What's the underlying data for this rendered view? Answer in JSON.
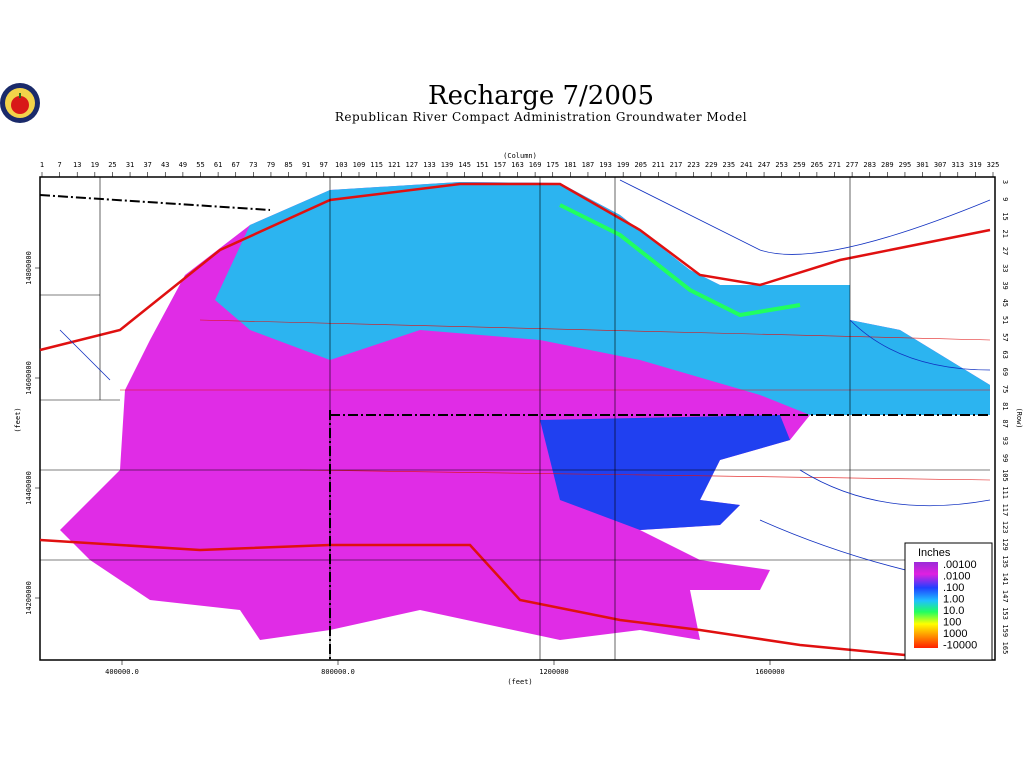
{
  "header": {
    "title": "Recharge  7/2005",
    "subtitle": "Republican  River  Compact  Administration  Groundwater  Model"
  },
  "map": {
    "column_label": "(Column)",
    "column_ticks": [
      "1",
      "7",
      "13",
      "19",
      "25",
      "31",
      "37",
      "43",
      "49",
      "55",
      "61",
      "67",
      "73",
      "79",
      "85",
      "91",
      "97",
      "103",
      "109",
      "115",
      "121",
      "127",
      "133",
      "139",
      "145",
      "151",
      "157",
      "163",
      "169",
      "175",
      "181",
      "187",
      "193",
      "199",
      "205",
      "211",
      "217",
      "223",
      "229",
      "235",
      "241",
      "247",
      "253",
      "259",
      "265",
      "271",
      "277",
      "283",
      "289",
      "295",
      "301",
      "307",
      "313",
      "319",
      "325"
    ],
    "row_label": "(Row)",
    "row_ticks": [
      "3",
      "9",
      "15",
      "21",
      "27",
      "33",
      "39",
      "45",
      "51",
      "57",
      "63",
      "69",
      "75",
      "81",
      "87",
      "93",
      "99",
      "105",
      "111",
      "117",
      "123",
      "129",
      "135",
      "141",
      "147",
      "153",
      "159",
      "165"
    ],
    "x_label": "(feet)",
    "x_ticks": [
      "400000.0",
      "800000.0",
      "1200000",
      "1600000"
    ],
    "y_label": "(feet)",
    "y_ticks": [
      "14800000",
      "14600000",
      "14400000",
      "14200000"
    ]
  },
  "legend": {
    "title": "Inches",
    "labels": [
      ".00100",
      ".0100",
      ".100",
      "1.00",
      "10.0",
      "100",
      "1000",
      "-10000"
    ]
  }
}
